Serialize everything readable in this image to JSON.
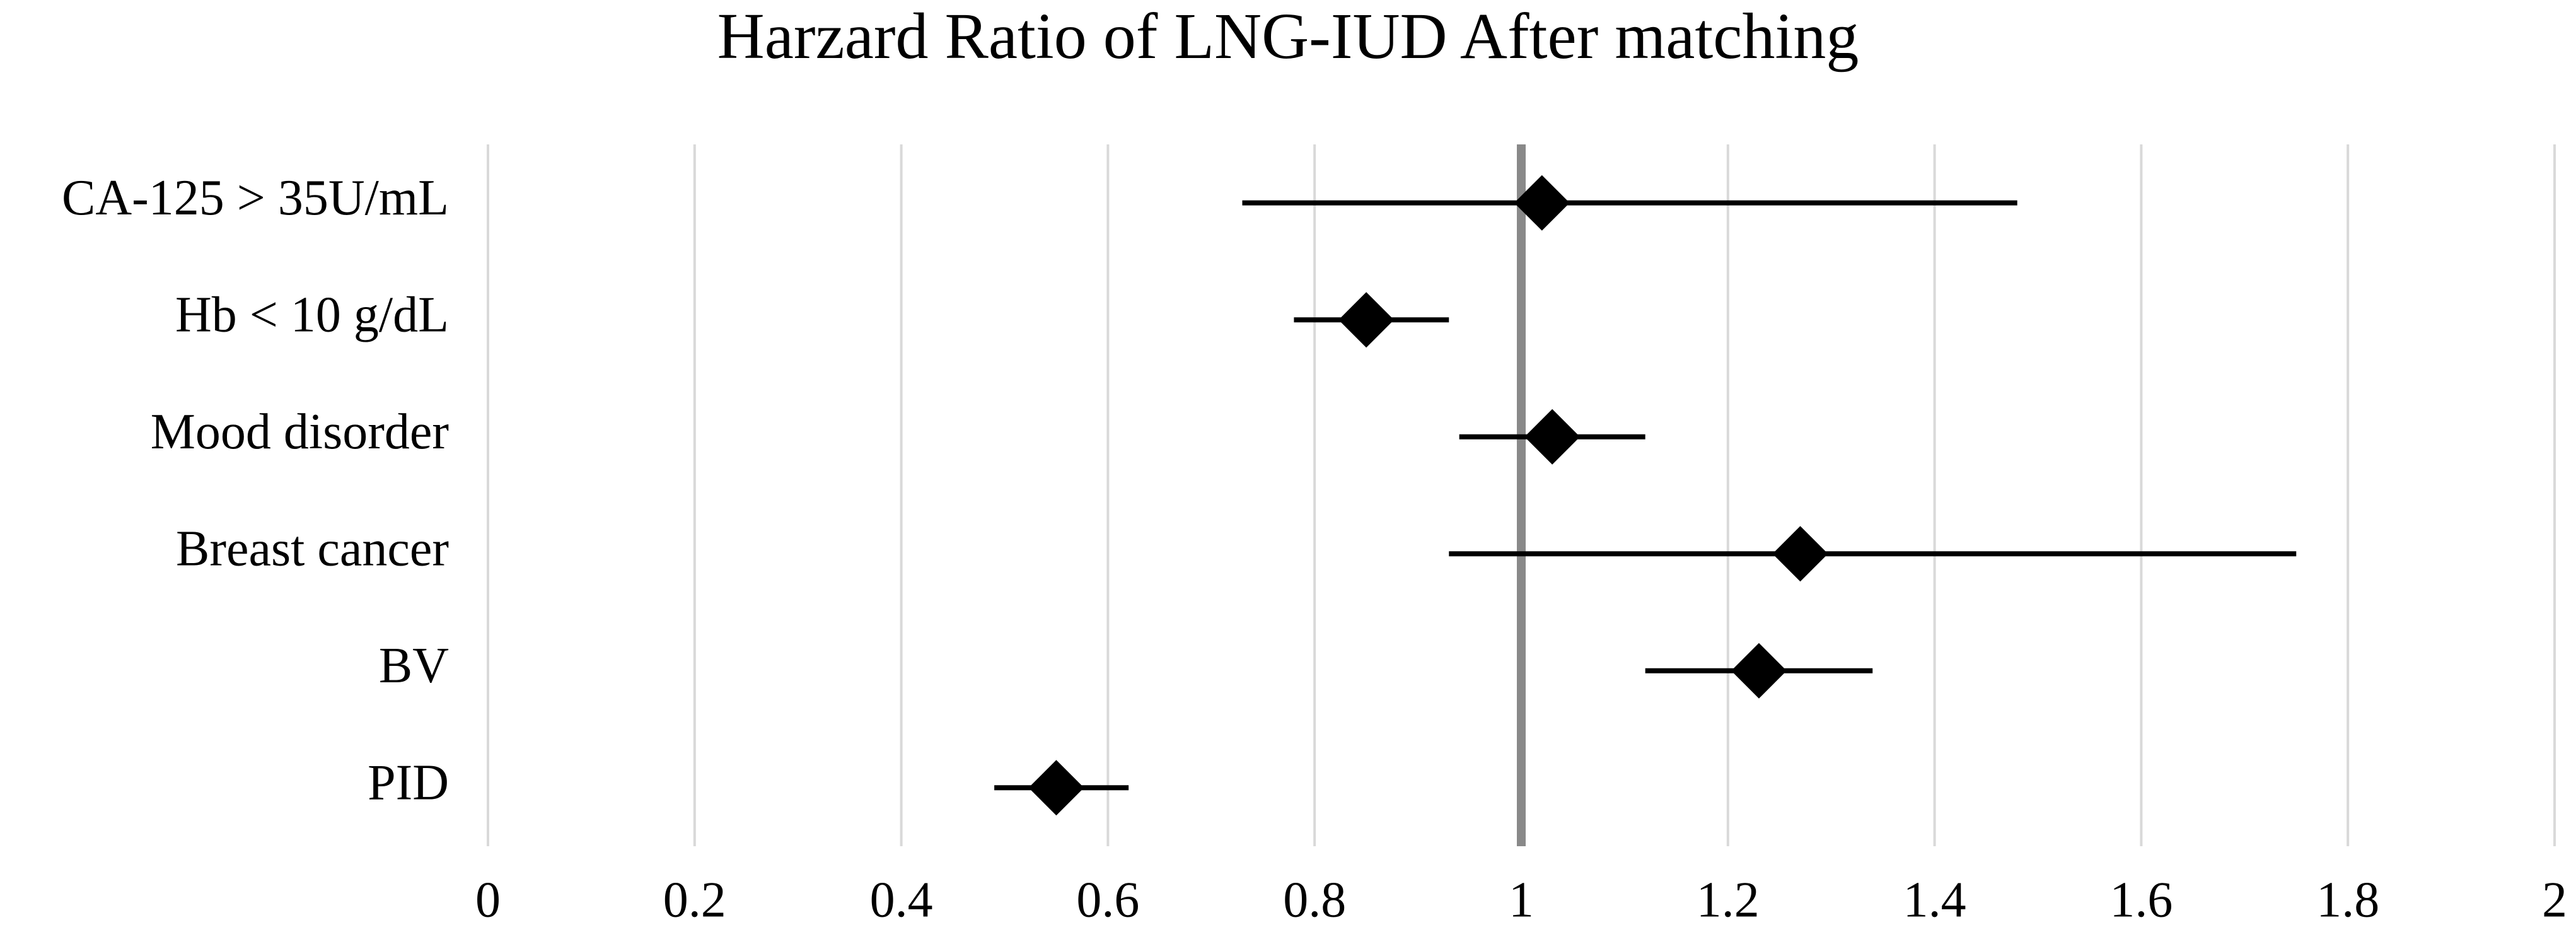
{
  "chart_data": {
    "type": "forest",
    "title": "Harzard Ratio of LNG-IUD After matching",
    "categories": [
      "CA-125 > 35U/mL",
      "Hb < 10 g/dL",
      "Mood disorder",
      "Breast cancer",
      "BV",
      "PID"
    ],
    "values": [
      1.02,
      0.85,
      1.03,
      1.27,
      1.23,
      0.55
    ],
    "lower": [
      0.73,
      0.78,
      0.94,
      0.93,
      1.12,
      0.49
    ],
    "upper": [
      1.48,
      0.93,
      1.12,
      1.75,
      1.34,
      0.62
    ],
    "color": "#000000",
    "reference_line": 1,
    "reference_color": "#898989",
    "xlim": [
      0,
      2
    ],
    "xticks": [
      0,
      0.2,
      0.4,
      0.6,
      0.8,
      1,
      1.2,
      1.4,
      1.6,
      1.8,
      2
    ],
    "grid": true
  }
}
